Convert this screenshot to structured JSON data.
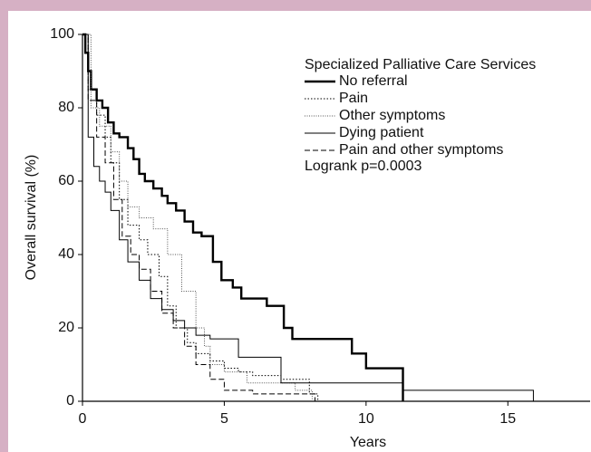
{
  "chart_data": {
    "type": "step",
    "y_label": "Overall survival (%)",
    "x_label": "Years",
    "legend_title": "Specialized Palliative Care Services",
    "annotation": "Logrank p=0.0003",
    "xlim": [
      0,
      17.9
    ],
    "xticks": [
      0,
      5,
      10,
      15
    ],
    "ylim": [
      0,
      100
    ],
    "yticks": [
      0,
      20,
      40,
      60,
      80,
      100
    ],
    "series": [
      {
        "name": "No referral",
        "color": "#000000",
        "width": 2.4,
        "dash": "none",
        "x": [
          0,
          0.1,
          0.2,
          0.3,
          0.5,
          0.7,
          0.9,
          1.1,
          1.3,
          1.6,
          1.8,
          2.0,
          2.2,
          2.5,
          2.8,
          3.0,
          3.3,
          3.6,
          3.9,
          4.2,
          4.6,
          4.9,
          5.3,
          5.6,
          6.5,
          7.1,
          7.4,
          9.5,
          10.0,
          11.3
        ],
        "values": [
          100,
          95,
          90,
          85,
          82,
          80,
          76,
          73,
          72,
          69,
          66,
          62,
          60,
          58,
          56,
          54,
          52,
          49,
          46,
          45,
          38,
          33,
          31,
          28,
          26,
          20,
          17,
          13,
          9,
          0
        ]
      },
      {
        "name": "Pain",
        "color": "#000000",
        "width": 1,
        "dash": "1.5,2",
        "x": [
          0,
          0.2,
          0.5,
          0.8,
          1.0,
          1.3,
          1.6,
          2.0,
          2.3,
          2.7,
          3.0,
          3.3,
          3.7,
          4.0,
          4.5,
          5.0,
          5.5,
          6.0,
          7.0,
          8.0,
          8.3
        ],
        "values": [
          100,
          85,
          78,
          72,
          65,
          55,
          48,
          44,
          40,
          34,
          26,
          20,
          16,
          13,
          11,
          9,
          8,
          7,
          6,
          2,
          0
        ]
      },
      {
        "name": "Other symptoms",
        "color": "#555555",
        "width": 1,
        "dash": "1,1.5",
        "x": [
          0,
          0.3,
          0.6,
          1.0,
          1.3,
          1.6,
          2.0,
          2.5,
          3.0,
          3.5,
          4.0,
          4.3,
          4.5,
          5.0,
          5.8,
          7.5,
          8.1
        ],
        "values": [
          100,
          80,
          75,
          68,
          60,
          53,
          50,
          47,
          40,
          30,
          20,
          15,
          10,
          8,
          5,
          3,
          0
        ]
      },
      {
        "name": "Dying patient",
        "color": "#000000",
        "width": 1,
        "dash": "none",
        "x": [
          0,
          0.2,
          0.4,
          0.6,
          0.8,
          1.0,
          1.3,
          1.6,
          2.0,
          2.4,
          2.8,
          3.2,
          3.6,
          4.0,
          4.5,
          5.5,
          7.0,
          11.3,
          15.9
        ],
        "values": [
          100,
          72,
          64,
          60,
          57,
          52,
          44,
          38,
          33,
          28,
          25,
          22,
          20,
          18,
          17,
          12,
          5,
          3,
          0
        ]
      },
      {
        "name": "Pain and other symptoms",
        "color": "#000000",
        "width": 1,
        "dash": "6,3",
        "x": [
          0,
          0.2,
          0.5,
          0.8,
          1.1,
          1.4,
          1.7,
          2.0,
          2.4,
          2.8,
          3.2,
          3.6,
          4.0,
          4.5,
          5.0,
          6.0,
          8.2
        ],
        "values": [
          100,
          82,
          72,
          65,
          55,
          45,
          40,
          36,
          30,
          24,
          20,
          15,
          10,
          6,
          3,
          2,
          0
        ]
      }
    ]
  }
}
